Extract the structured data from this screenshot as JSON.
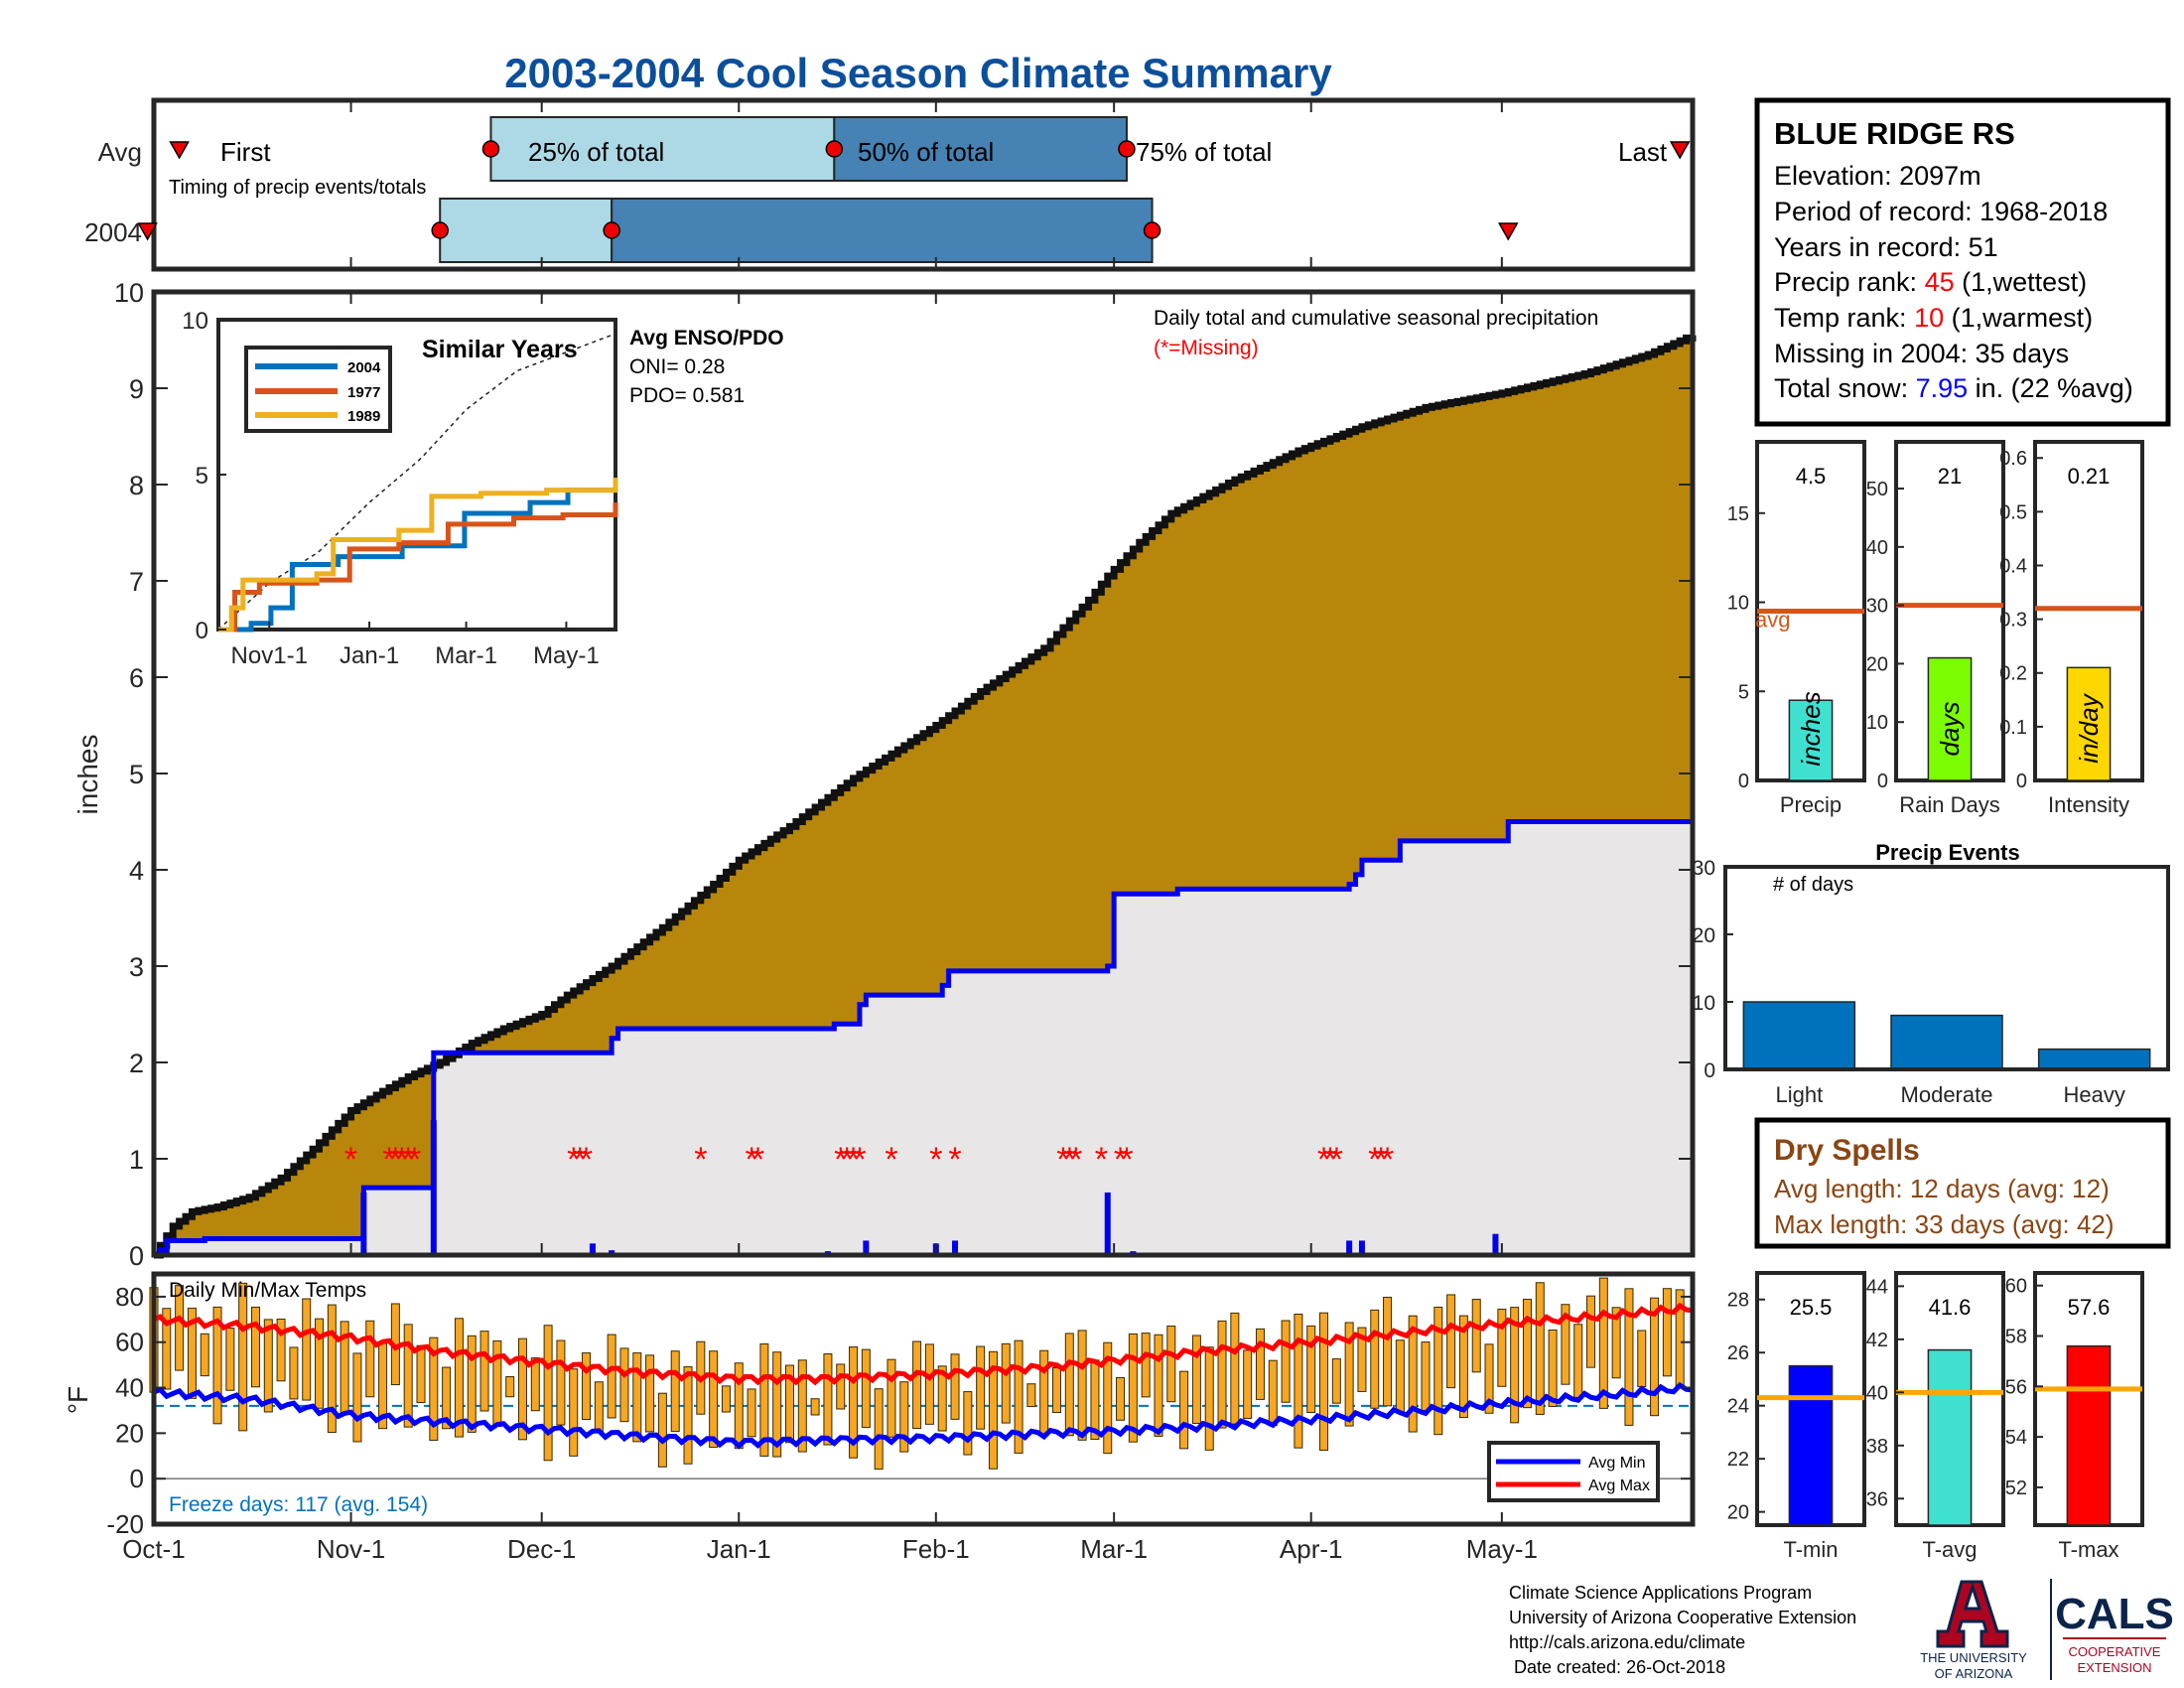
{
  "title": "2003-2004 Cool Season Climate Summary",
  "colors": {
    "title": "#0b4f9c",
    "cum_avg_fill": "#b8860b",
    "cum_2004_fill": "#e8e6e6",
    "line_2004": "#0000ee",
    "missing": "#ff0000",
    "box_light": "#add8e6",
    "box_dark": "#4682b4",
    "avg_line": "#d95319",
    "dry_text": "#8b4513",
    "temp_bar": "#f5a623",
    "tmin": "#0000ff",
    "tavg": "#40e0d0",
    "tmax": "#ff0000",
    "temp_avg_line": "#ffa500",
    "precip_bar": "#40e0d0",
    "raindays_bar": "#7cfc00",
    "intensity_bar": "#ffd700",
    "events_bar": "#0072bd",
    "ua_red": "#ab0520",
    "ua_navy": "#0c234b"
  },
  "timing": {
    "row_labels": [
      "Avg",
      "2004"
    ],
    "caption": "Timing of precip events/totals",
    "first_label": "First",
    "last_label": "Last",
    "pct_labels": [
      "25% of total",
      "50% of total",
      "75% of total"
    ],
    "avg": {
      "first": 4,
      "p25": 53,
      "p50": 107,
      "p75": 153,
      "last": 240
    },
    "y2004": {
      "first": -1,
      "p25": 45,
      "p50": 72,
      "p75": 157,
      "last": 213
    }
  },
  "station": {
    "name": "BLUE RIDGE RS",
    "elevation": "Elevation: 2097m",
    "period": "Period of record: 1968-2018",
    "years": "Years in record: 51",
    "precip_rank_label": "Precip rank: ",
    "precip_rank": "45",
    "precip_rank_note": " (1,wettest)",
    "temp_rank_label": "Temp rank: ",
    "temp_rank": "10",
    "temp_rank_note": " (1,warmest)",
    "missing": "Missing in 2004: 35 days",
    "snow_label": "Total snow: ",
    "snow_value": "7.95",
    "snow_note": " in. (22 %avg)"
  },
  "main_chart": {
    "ylabel": "inches",
    "title_line": "Daily total and cumulative seasonal precipitation",
    "missing_note": "(*=Missing)",
    "x_ticks": [
      "Oct-1",
      "Nov-1",
      "Dec-1",
      "Jan-1",
      "Feb-1",
      "Mar-1",
      "Apr-1",
      "May-1"
    ],
    "x_tick_days": [
      0,
      31,
      61,
      92,
      123,
      151,
      182,
      212
    ]
  },
  "chart_data": [
    {
      "type": "area",
      "title": "Daily total and cumulative seasonal precipitation",
      "ylabel": "inches",
      "ylim": [
        0,
        10
      ],
      "y_ticks": [
        0,
        1,
        2,
        3,
        4,
        5,
        6,
        7,
        8,
        9,
        10
      ],
      "xlim_days": [
        0,
        242
      ],
      "series": [
        {
          "name": "Avg",
          "x_days": [
            0,
            3,
            6,
            10,
            15,
            20,
            25,
            31,
            36,
            40,
            45,
            50,
            55,
            61,
            65,
            72,
            80,
            88,
            92,
            100,
            110,
            123,
            130,
            140,
            147,
            150,
            155,
            160,
            170,
            180,
            190,
            200,
            212,
            225,
            235,
            242
          ],
          "values": [
            0,
            0.3,
            0.45,
            0.5,
            0.6,
            0.8,
            1.1,
            1.5,
            1.7,
            1.85,
            2.0,
            2.2,
            2.35,
            2.5,
            2.7,
            3.0,
            3.4,
            3.85,
            4.1,
            4.45,
            4.95,
            5.5,
            5.85,
            6.3,
            6.8,
            7.05,
            7.4,
            7.7,
            8.05,
            8.35,
            8.6,
            8.8,
            8.95,
            9.15,
            9.35,
            9.55
          ]
        },
        {
          "name": "2004",
          "x_days": [
            0,
            1,
            2,
            8,
            32,
            33,
            43,
            44,
            45,
            68,
            72,
            73,
            106,
            107,
            111,
            112,
            124,
            125,
            135,
            150,
            151,
            161,
            167,
            188,
            189,
            190,
            196,
            197,
            212,
            213,
            242
          ],
          "values": [
            0,
            0.05,
            0.15,
            0.17,
            0.17,
            0.7,
            0.7,
            2.1,
            2.1,
            2.1,
            2.25,
            2.35,
            2.35,
            2.4,
            2.6,
            2.7,
            2.8,
            2.95,
            2.95,
            3.0,
            3.75,
            3.8,
            3.8,
            3.85,
            3.95,
            4.1,
            4.3,
            4.3,
            4.3,
            4.5,
            4.5
          ]
        }
      ],
      "daily_2004": {
        "x_days": [
          2,
          33,
          44,
          69,
          72,
          106,
          112,
          123,
          126,
          150,
          154,
          188,
          190,
          211
        ],
        "values": [
          0.08,
          0.65,
          1.4,
          0.12,
          0.05,
          0.04,
          0.15,
          0.12,
          0.15,
          0.65,
          0.04,
          0.15,
          0.15,
          0.22
        ]
      },
      "missing_days": [
        31,
        37,
        38,
        39,
        40,
        41,
        66,
        67,
        68,
        86,
        94,
        95,
        108,
        109,
        110,
        111,
        116,
        123,
        126,
        143,
        144,
        145,
        149,
        152,
        153,
        184,
        185,
        186,
        192,
        193,
        194
      ]
    },
    {
      "type": "line",
      "title": "Similar Years",
      "x_ticks": [
        "Nov1-1",
        "Jan-1",
        "Mar-1",
        "May-1"
      ],
      "x_tick_days": [
        31,
        92,
        151,
        212
      ],
      "ylim": [
        0,
        10
      ],
      "y_ticks": [
        0,
        5,
        10
      ],
      "legend": [
        "2004",
        "1977",
        "1989"
      ],
      "series": [
        {
          "name": "2004",
          "color": "#0072bd",
          "x_days": [
            0,
            20,
            32,
            45,
            73,
            112,
            150,
            190,
            213,
            242
          ],
          "values": [
            0,
            0.2,
            0.7,
            2.1,
            2.35,
            2.7,
            3.75,
            4.1,
            4.5,
            4.5
          ]
        },
        {
          "name": "1977",
          "color": "#d95319",
          "x_days": [
            0,
            10,
            25,
            60,
            80,
            110,
            140,
            180,
            210,
            242
          ],
          "values": [
            0,
            1.2,
            1.5,
            1.6,
            2.6,
            2.8,
            3.4,
            3.6,
            3.7,
            4.1
          ]
        },
        {
          "name": "1989",
          "color": "#edb120",
          "x_days": [
            0,
            8,
            15,
            60,
            70,
            110,
            130,
            160,
            200,
            242
          ],
          "values": [
            0,
            0.7,
            1.6,
            1.8,
            2.9,
            3.2,
            4.3,
            4.4,
            4.5,
            4.9
          ]
        }
      ],
      "avg_series": {
        "x_days": [
          0,
          31,
          61,
          92,
          123,
          151,
          182,
          212,
          242
        ],
        "values": [
          0,
          1.5,
          2.5,
          4.1,
          5.5,
          7.1,
          8.35,
          8.95,
          9.55
        ]
      },
      "annotation": {
        "title": "Avg ENSO/PDO",
        "lines": [
          "ONI= 0.28",
          "PDO= 0.581"
        ]
      }
    },
    {
      "type": "bar",
      "title": "Daily Min/Max Temps",
      "ylabel": "°F",
      "ylim": [
        -20,
        90
      ],
      "y_ticks": [
        -20,
        0,
        20,
        40,
        60,
        80
      ],
      "freeze_text": "Freeze days: 117 (avg. 154)",
      "freeze_line": 32,
      "legend": [
        "Avg Min",
        "Avg Max"
      ],
      "avg_min": {
        "x_days": [
          0,
          15,
          31,
          45,
          61,
          75,
          92,
          105,
          123,
          140,
          151,
          165,
          182,
          200,
          212,
          230,
          242
        ],
        "values": [
          38,
          35,
          28,
          25,
          22,
          19,
          16,
          17,
          18,
          20,
          21,
          23,
          26,
          30,
          33,
          37,
          40
        ]
      },
      "avg_max": {
        "x_days": [
          0,
          15,
          31,
          45,
          61,
          75,
          92,
          105,
          123,
          140,
          151,
          165,
          182,
          200,
          212,
          230,
          242
        ],
        "values": [
          70,
          67,
          62,
          56,
          51,
          47,
          44,
          44,
          46,
          49,
          52,
          56,
          60,
          65,
          68,
          72,
          75
        ]
      }
    },
    {
      "type": "bar",
      "title": "Seasonal totals",
      "panels": [
        {
          "name": "Precip",
          "unit": "inches",
          "value": 4.5,
          "avg": 9.5,
          "ylim": [
            0,
            19
          ],
          "y_ticks": [
            0,
            5,
            10,
            15
          ],
          "label": "4.5",
          "avg_label": "avg"
        },
        {
          "name": "Rain Days",
          "unit": "days",
          "value": 21,
          "avg": 30,
          "ylim": [
            0,
            58
          ],
          "y_ticks": [
            0,
            10,
            20,
            30,
            40,
            50
          ],
          "label": "21"
        },
        {
          "name": "Intensity",
          "unit": "in/day",
          "value": 0.21,
          "avg": 0.32,
          "ylim": [
            0,
            0.63
          ],
          "y_ticks": [
            0,
            0.1,
            0.2,
            0.3,
            0.4,
            0.5,
            0.6
          ],
          "label": "0.21"
        }
      ]
    },
    {
      "type": "bar",
      "title": "Precip Events",
      "ylabel": "# of days",
      "ylim": [
        0,
        30
      ],
      "y_ticks": [
        0,
        10,
        20,
        30
      ],
      "categories": [
        "Light",
        "Moderate",
        "Heavy"
      ],
      "values": [
        10,
        8,
        3
      ]
    },
    {
      "type": "bar",
      "title": "Seasonal temperatures",
      "panels": [
        {
          "name": "T-min",
          "value": 25.5,
          "avg": 24.3,
          "ylim": [
            19.5,
            29
          ],
          "y_ticks": [
            20,
            22,
            24,
            26,
            28
          ],
          "label": "25.5"
        },
        {
          "name": "T-avg",
          "value": 41.6,
          "avg": 40.0,
          "ylim": [
            35,
            44.5
          ],
          "y_ticks": [
            36,
            38,
            40,
            42,
            44
          ],
          "label": "41.6"
        },
        {
          "name": "T-max",
          "value": 57.6,
          "avg": 55.9,
          "ylim": [
            50.5,
            60.5
          ],
          "y_ticks": [
            52,
            54,
            56,
            58,
            60
          ],
          "label": "57.6"
        }
      ]
    }
  ],
  "dry_spells": {
    "title": "Dry Spells",
    "avg_line": "Avg length: 12 days (avg: 12)",
    "max_line": "Max length: 33 days (avg: 42)"
  },
  "footer": {
    "line1": "Climate Science Applications Program",
    "line2": "University of Arizona Cooperative Extension",
    "line3": "http://cals.arizona.edu/climate",
    "line4": " Date created: 26-Oct-2018"
  },
  "logo": {
    "university": "THE UNIVERSITY",
    "of_arizona": "OF ARIZONA",
    "cals": "CALS",
    "coop1": "COOPERATIVE",
    "coop2": "EXTENSION"
  }
}
